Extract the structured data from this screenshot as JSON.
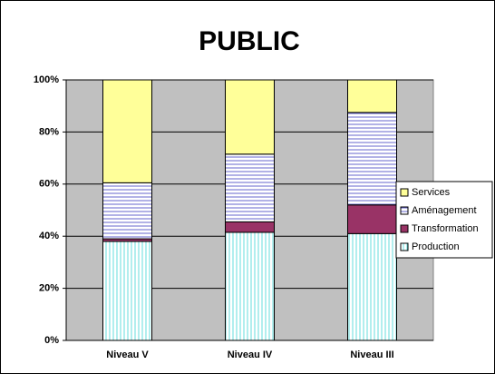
{
  "chart_data": {
    "type": "stacked_bar",
    "title": "PUBLIC",
    "categories": [
      "Niveau V",
      "Niveau IV",
      "Niveau III"
    ],
    "series": [
      {
        "name": "Production",
        "color": "#ccffff",
        "values": [
          38,
          41.5,
          41
        ]
      },
      {
        "name": "Transformation",
        "color": "#993366",
        "values": [
          1,
          4,
          11
        ]
      },
      {
        "name": "Aménagement",
        "color": "#ccccff",
        "values": [
          21.5,
          26,
          35.5
        ]
      },
      {
        "name": "Services",
        "color": "#ffff99",
        "values": [
          39.5,
          28.5,
          12.5
        ]
      }
    ],
    "ylim": [
      0,
      100
    ],
    "yticks": [
      {
        "value": 0,
        "label": "0%"
      },
      {
        "value": 20,
        "label": "20%"
      },
      {
        "value": 40,
        "label": "40%"
      },
      {
        "value": 60,
        "label": "60%"
      },
      {
        "value": 80,
        "label": "80%"
      },
      {
        "value": 100,
        "label": "100%"
      }
    ],
    "grid": true,
    "legend": "right"
  }
}
